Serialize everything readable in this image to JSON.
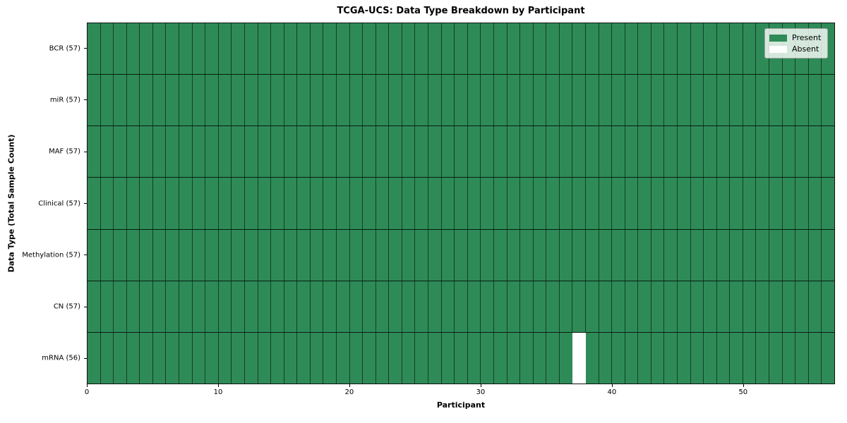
{
  "chart_data": {
    "type": "heatmap",
    "title": "TCGA-UCS: Data Type Breakdown by Participant",
    "xlabel": "Participant",
    "ylabel": "Data Type (Total Sample Count)",
    "n_participants": 57,
    "x_ticks": [
      0,
      10,
      20,
      30,
      40,
      50
    ],
    "xlim": [
      0,
      57
    ],
    "grid": "cell-borders",
    "legend_position": "upper right",
    "rows": [
      {
        "label": "BCR (57)",
        "data_type": "BCR",
        "present_count": 57,
        "absent_participants": []
      },
      {
        "label": "miR (57)",
        "data_type": "miR",
        "present_count": 57,
        "absent_participants": []
      },
      {
        "label": "MAF (57)",
        "data_type": "MAF",
        "present_count": 57,
        "absent_participants": []
      },
      {
        "label": "Clinical (57)",
        "data_type": "Clinical",
        "present_count": 57,
        "absent_participants": []
      },
      {
        "label": "Methylation (57)",
        "data_type": "Methylation",
        "present_count": 57,
        "absent_participants": []
      },
      {
        "label": "CN (57)",
        "data_type": "CN",
        "present_count": 57,
        "absent_participants": []
      },
      {
        "label": "mRNA (56)",
        "data_type": "mRNA",
        "present_count": 56,
        "absent_participants": [
          37
        ]
      }
    ],
    "legend": [
      {
        "label": "Present",
        "color": "#2e8b57"
      },
      {
        "label": "Absent",
        "color": "#ffffff"
      }
    ],
    "colors": {
      "present": "#2e8b57",
      "absent": "#ffffff",
      "cell_border": "rgba(0,0,0,0.55)"
    }
  }
}
